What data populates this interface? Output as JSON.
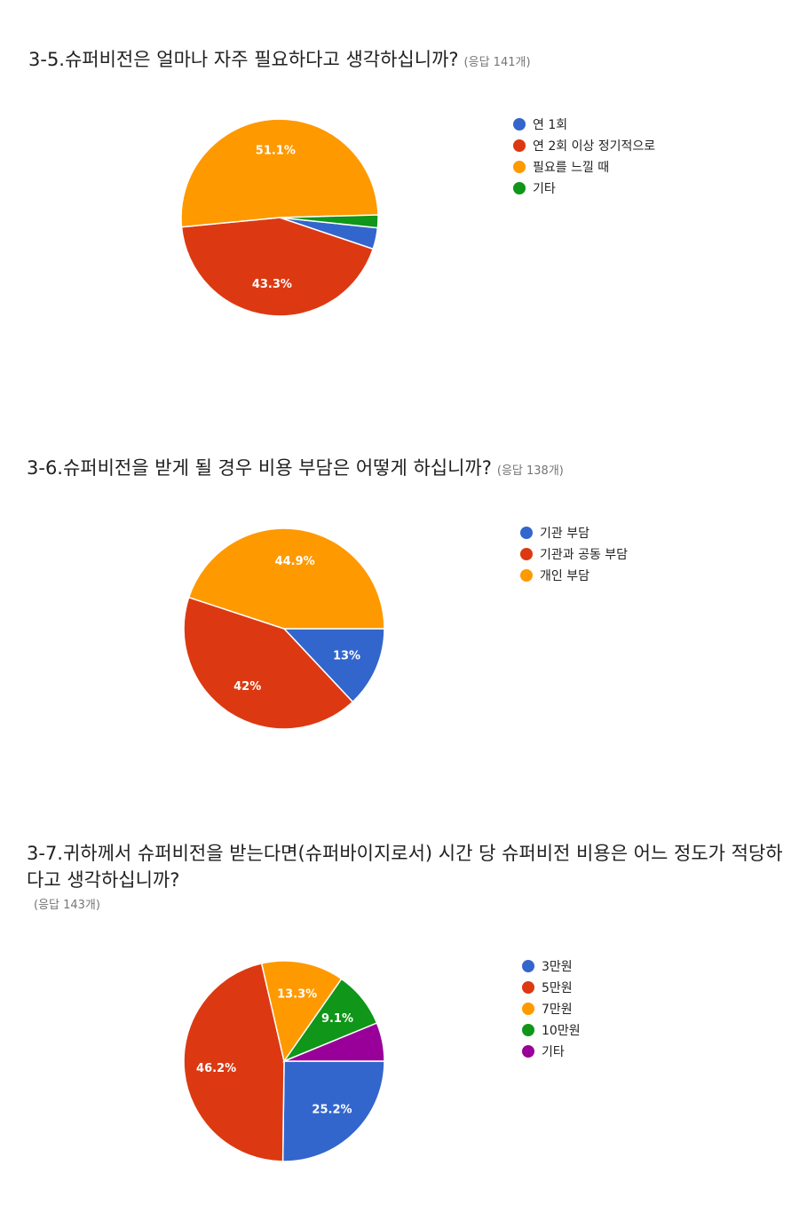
{
  "chart_data": [
    {
      "type": "pie",
      "title": "3-5.슈퍼비전은 얼마나 자주 필요하다고 생각하십니까?",
      "response_count": "(응답 141개)",
      "categories": [
        "연 1회",
        "연 2회 이상 정기적으로",
        "필요를 느낄 때",
        "기타"
      ],
      "values": [
        3.5,
        43.3,
        51.1,
        2.1
      ],
      "slice_labels": [
        "",
        "43.3%",
        "51.1%",
        ""
      ],
      "colors": [
        "#3366cc",
        "#dc3912",
        "#ff9900",
        "#109618"
      ],
      "legend": "right"
    },
    {
      "type": "pie",
      "title": "3-6.슈퍼비전을 받게 될 경우 비용 부담은 어떻게 하십니까?",
      "response_count": "(응답 138개)",
      "categories": [
        "기관 부담",
        "기관과 공동 부담",
        "개인 부담"
      ],
      "values": [
        13,
        42,
        44.9
      ],
      "slice_labels": [
        "13%",
        "42%",
        "44.9%"
      ],
      "colors": [
        "#3366cc",
        "#dc3912",
        "#ff9900"
      ],
      "legend": "right"
    },
    {
      "type": "pie",
      "title": "3-7.귀하께서 슈퍼비전을 받는다면(슈퍼바이지로서) 시간 당 슈퍼비전 비용은 어느 정도가 적당하다고 생각하십니까?",
      "response_count": "(응답 143개)",
      "categories": [
        "3만원",
        "5만원",
        "7만원",
        "10만원",
        "기타"
      ],
      "values": [
        25.2,
        46.2,
        13.3,
        9.1,
        6.2
      ],
      "slice_labels": [
        "25.2%",
        "46.2%",
        "13.3%",
        "9.1%",
        ""
      ],
      "colors": [
        "#3366cc",
        "#dc3912",
        "#ff9900",
        "#109618",
        "#990099"
      ],
      "legend": "right"
    }
  ]
}
